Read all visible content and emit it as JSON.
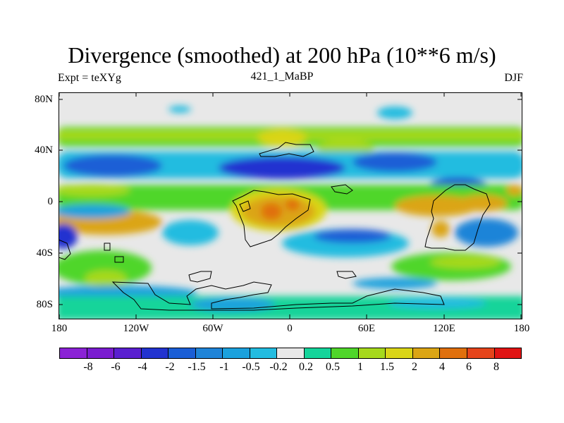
{
  "title": "Divergence (smoothed) at 200 hPa (10**6 m/s)",
  "subtitle_left": "Expt = teXYg",
  "subtitle_center": "421_1_MaBP",
  "subtitle_right": "DJF",
  "lat_labels": [
    "80N",
    "40N",
    "0",
    "40S",
    "80S"
  ],
  "lon_labels": [
    "180",
    "120W",
    "60W",
    "0",
    "60E",
    "120E",
    "180"
  ],
  "colorbar": {
    "labels": [
      "-8",
      "-6",
      "-4",
      "-2",
      "-1.5",
      "-1",
      "-0.5",
      "-0.2",
      "0.2",
      "0.5",
      "1",
      "1.5",
      "2",
      "4",
      "6",
      "8"
    ],
    "colors": [
      "#8b22d6",
      "#7a1cd0",
      "#5a1fd0",
      "#2233d0",
      "#1a5ed6",
      "#1f84d8",
      "#1ba1dd",
      "#22bce0",
      "#e8e8e8",
      "#14d49a",
      "#4fd62a",
      "#a6d91c",
      "#dad517",
      "#dba514",
      "#e0700d",
      "#e5441b",
      "#e01414"
    ]
  },
  "map": {
    "lat_range": [
      -90,
      90
    ],
    "lon_range": [
      -180,
      180
    ],
    "background": "#e8e8e8"
  }
}
